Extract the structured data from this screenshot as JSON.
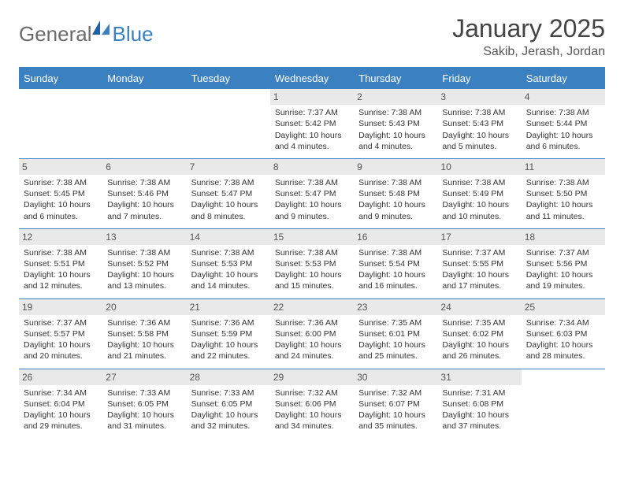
{
  "brand": {
    "part1": "General",
    "part2": "Blue"
  },
  "title": "January 2025",
  "location": "Sakib, Jerash, Jordan",
  "colors": {
    "accent": "#3b81c2",
    "header_gray": "#e9e9e9",
    "text": "#333333",
    "muted": "#6b6b6b",
    "background": "#ffffff"
  },
  "typography": {
    "body_pt": 10.5,
    "title_pt": 32,
    "location_pt": 16,
    "dayhead_pt": 13
  },
  "day_headers": [
    "Sunday",
    "Monday",
    "Tuesday",
    "Wednesday",
    "Thursday",
    "Friday",
    "Saturday"
  ],
  "weeks": [
    [
      {
        "n": "",
        "sunrise": "",
        "sunset": "",
        "daylight": ""
      },
      {
        "n": "",
        "sunrise": "",
        "sunset": "",
        "daylight": ""
      },
      {
        "n": "",
        "sunrise": "",
        "sunset": "",
        "daylight": ""
      },
      {
        "n": "1",
        "sunrise": "Sunrise: 7:37 AM",
        "sunset": "Sunset: 5:42 PM",
        "daylight": "Daylight: 10 hours and 4 minutes."
      },
      {
        "n": "2",
        "sunrise": "Sunrise: 7:38 AM",
        "sunset": "Sunset: 5:43 PM",
        "daylight": "Daylight: 10 hours and 4 minutes."
      },
      {
        "n": "3",
        "sunrise": "Sunrise: 7:38 AM",
        "sunset": "Sunset: 5:43 PM",
        "daylight": "Daylight: 10 hours and 5 minutes."
      },
      {
        "n": "4",
        "sunrise": "Sunrise: 7:38 AM",
        "sunset": "Sunset: 5:44 PM",
        "daylight": "Daylight: 10 hours and 6 minutes."
      }
    ],
    [
      {
        "n": "5",
        "sunrise": "Sunrise: 7:38 AM",
        "sunset": "Sunset: 5:45 PM",
        "daylight": "Daylight: 10 hours and 6 minutes."
      },
      {
        "n": "6",
        "sunrise": "Sunrise: 7:38 AM",
        "sunset": "Sunset: 5:46 PM",
        "daylight": "Daylight: 10 hours and 7 minutes."
      },
      {
        "n": "7",
        "sunrise": "Sunrise: 7:38 AM",
        "sunset": "Sunset: 5:47 PM",
        "daylight": "Daylight: 10 hours and 8 minutes."
      },
      {
        "n": "8",
        "sunrise": "Sunrise: 7:38 AM",
        "sunset": "Sunset: 5:47 PM",
        "daylight": "Daylight: 10 hours and 9 minutes."
      },
      {
        "n": "9",
        "sunrise": "Sunrise: 7:38 AM",
        "sunset": "Sunset: 5:48 PM",
        "daylight": "Daylight: 10 hours and 9 minutes."
      },
      {
        "n": "10",
        "sunrise": "Sunrise: 7:38 AM",
        "sunset": "Sunset: 5:49 PM",
        "daylight": "Daylight: 10 hours and 10 minutes."
      },
      {
        "n": "11",
        "sunrise": "Sunrise: 7:38 AM",
        "sunset": "Sunset: 5:50 PM",
        "daylight": "Daylight: 10 hours and 11 minutes."
      }
    ],
    [
      {
        "n": "12",
        "sunrise": "Sunrise: 7:38 AM",
        "sunset": "Sunset: 5:51 PM",
        "daylight": "Daylight: 10 hours and 12 minutes."
      },
      {
        "n": "13",
        "sunrise": "Sunrise: 7:38 AM",
        "sunset": "Sunset: 5:52 PM",
        "daylight": "Daylight: 10 hours and 13 minutes."
      },
      {
        "n": "14",
        "sunrise": "Sunrise: 7:38 AM",
        "sunset": "Sunset: 5:53 PM",
        "daylight": "Daylight: 10 hours and 14 minutes."
      },
      {
        "n": "15",
        "sunrise": "Sunrise: 7:38 AM",
        "sunset": "Sunset: 5:53 PM",
        "daylight": "Daylight: 10 hours and 15 minutes."
      },
      {
        "n": "16",
        "sunrise": "Sunrise: 7:38 AM",
        "sunset": "Sunset: 5:54 PM",
        "daylight": "Daylight: 10 hours and 16 minutes."
      },
      {
        "n": "17",
        "sunrise": "Sunrise: 7:37 AM",
        "sunset": "Sunset: 5:55 PM",
        "daylight": "Daylight: 10 hours and 17 minutes."
      },
      {
        "n": "18",
        "sunrise": "Sunrise: 7:37 AM",
        "sunset": "Sunset: 5:56 PM",
        "daylight": "Daylight: 10 hours and 19 minutes."
      }
    ],
    [
      {
        "n": "19",
        "sunrise": "Sunrise: 7:37 AM",
        "sunset": "Sunset: 5:57 PM",
        "daylight": "Daylight: 10 hours and 20 minutes."
      },
      {
        "n": "20",
        "sunrise": "Sunrise: 7:36 AM",
        "sunset": "Sunset: 5:58 PM",
        "daylight": "Daylight: 10 hours and 21 minutes."
      },
      {
        "n": "21",
        "sunrise": "Sunrise: 7:36 AM",
        "sunset": "Sunset: 5:59 PM",
        "daylight": "Daylight: 10 hours and 22 minutes."
      },
      {
        "n": "22",
        "sunrise": "Sunrise: 7:36 AM",
        "sunset": "Sunset: 6:00 PM",
        "daylight": "Daylight: 10 hours and 24 minutes."
      },
      {
        "n": "23",
        "sunrise": "Sunrise: 7:35 AM",
        "sunset": "Sunset: 6:01 PM",
        "daylight": "Daylight: 10 hours and 25 minutes."
      },
      {
        "n": "24",
        "sunrise": "Sunrise: 7:35 AM",
        "sunset": "Sunset: 6:02 PM",
        "daylight": "Daylight: 10 hours and 26 minutes."
      },
      {
        "n": "25",
        "sunrise": "Sunrise: 7:34 AM",
        "sunset": "Sunset: 6:03 PM",
        "daylight": "Daylight: 10 hours and 28 minutes."
      }
    ],
    [
      {
        "n": "26",
        "sunrise": "Sunrise: 7:34 AM",
        "sunset": "Sunset: 6:04 PM",
        "daylight": "Daylight: 10 hours and 29 minutes."
      },
      {
        "n": "27",
        "sunrise": "Sunrise: 7:33 AM",
        "sunset": "Sunset: 6:05 PM",
        "daylight": "Daylight: 10 hours and 31 minutes."
      },
      {
        "n": "28",
        "sunrise": "Sunrise: 7:33 AM",
        "sunset": "Sunset: 6:05 PM",
        "daylight": "Daylight: 10 hours and 32 minutes."
      },
      {
        "n": "29",
        "sunrise": "Sunrise: 7:32 AM",
        "sunset": "Sunset: 6:06 PM",
        "daylight": "Daylight: 10 hours and 34 minutes."
      },
      {
        "n": "30",
        "sunrise": "Sunrise: 7:32 AM",
        "sunset": "Sunset: 6:07 PM",
        "daylight": "Daylight: 10 hours and 35 minutes."
      },
      {
        "n": "31",
        "sunrise": "Sunrise: 7:31 AM",
        "sunset": "Sunset: 6:08 PM",
        "daylight": "Daylight: 10 hours and 37 minutes."
      },
      {
        "n": "",
        "sunrise": "",
        "sunset": "",
        "daylight": ""
      }
    ]
  ]
}
